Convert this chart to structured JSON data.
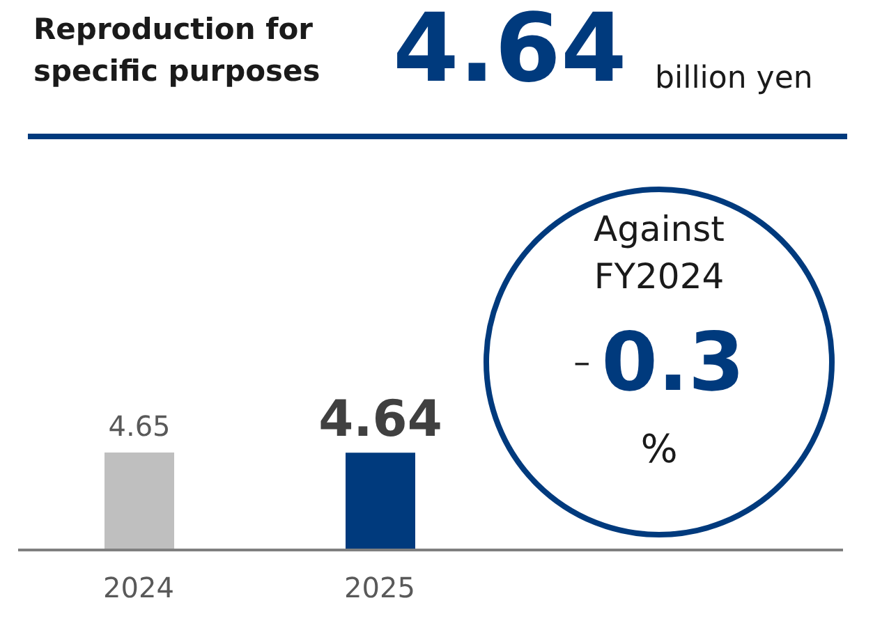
{
  "chart_data": {
    "type": "bar",
    "title": "Reproduction for specific purposes",
    "categories": [
      "2024",
      "2025"
    ],
    "values": [
      4.65,
      4.64
    ],
    "colors": [
      "#bfbfbf",
      "#003a7d"
    ],
    "data_labels": true,
    "tick_labels": "x",
    "annotations": [
      "4.64",
      "billion yen",
      "Against FY2024",
      "–",
      "0.3",
      "%"
    ]
  }
}
